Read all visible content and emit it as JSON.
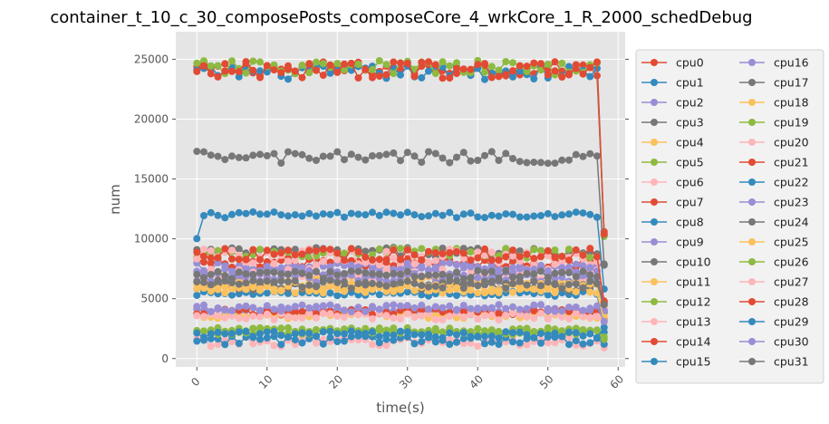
{
  "chart_data": {
    "type": "line",
    "title": "container_t_10_c_30_composePosts_composeCore_4_wrkCore_1_R_2000_schedDebug",
    "xlabel": "time(s)",
    "ylabel": "num",
    "xlim": [
      -3,
      61
    ],
    "ylim": [
      -700,
      27300
    ],
    "xticks": [
      0,
      10,
      20,
      30,
      40,
      50,
      60
    ],
    "yticks": [
      0,
      5000,
      10000,
      15000,
      20000,
      25000
    ],
    "grid": true,
    "legend": {
      "placement": "right-outside",
      "columns": 2
    },
    "palette": [
      "#E24A33",
      "#348ABD",
      "#988ED5",
      "#777777",
      "#FBC15E",
      "#8EBA42",
      "#FFB5B8"
    ],
    "x": [
      0,
      1,
      2,
      3,
      4,
      5,
      6,
      7,
      8,
      9,
      10,
      11,
      12,
      13,
      14,
      15,
      16,
      17,
      18,
      19,
      20,
      21,
      22,
      23,
      24,
      25,
      26,
      27,
      28,
      29,
      30,
      31,
      32,
      33,
      34,
      35,
      36,
      37,
      38,
      39,
      40,
      41,
      42,
      43,
      44,
      45,
      46,
      47,
      48,
      49,
      50,
      51,
      52,
      53,
      54,
      55,
      56,
      57,
      58
    ],
    "series": [
      {
        "name": "cpu0",
        "base": 24200,
        "amp": 600,
        "end": 10600
      },
      {
        "name": "cpu1",
        "base": 23900,
        "amp": 600,
        "end": 10300
      },
      {
        "name": "cpu2",
        "base": 4000,
        "amp": 300,
        "end": 3800
      },
      {
        "name": "cpu3",
        "base": 8900,
        "amp": 400,
        "end": 7800
      },
      {
        "name": "cpu4",
        "base": 3600,
        "amp": 250,
        "end": 3400
      },
      {
        "name": "cpu5",
        "base": 24300,
        "amp": 600,
        "end": 10200
      },
      {
        "name": "cpu6",
        "base": 1400,
        "amp": 400,
        "end": 900
      },
      {
        "name": "cpu7",
        "base": 8000,
        "amp": 400,
        "end": 4800
      },
      {
        "name": "cpu8",
        "base": 12000,
        "amp": 250,
        "end": 5800
      },
      {
        "name": "cpu9",
        "base": 7600,
        "amp": 400,
        "end": 4100
      },
      {
        "name": "cpu10",
        "base": 16800,
        "amp": 500,
        "end": 7900
      },
      {
        "name": "cpu11",
        "base": 6600,
        "amp": 400,
        "end": 3700
      },
      {
        "name": "cpu12",
        "base": 8800,
        "amp": 400,
        "end": 4400
      },
      {
        "name": "cpu13",
        "base": 7000,
        "amp": 500,
        "end": 4200
      },
      {
        "name": "cpu14",
        "base": 3900,
        "amp": 250,
        "end": 3300
      },
      {
        "name": "cpu15",
        "base": 5400,
        "amp": 200,
        "end": 2200
      },
      {
        "name": "cpu16",
        "base": 6700,
        "amp": 400,
        "end": 4000
      },
      {
        "name": "cpu17",
        "base": 6000,
        "amp": 350,
        "end": 3900
      },
      {
        "name": "cpu18",
        "base": 6000,
        "amp": 400,
        "end": 3500
      },
      {
        "name": "cpu19",
        "base": 2400,
        "amp": 200,
        "end": 1800
      },
      {
        "name": "cpu20",
        "base": 8500,
        "amp": 700,
        "end": 4300
      },
      {
        "name": "cpu21",
        "base": 24100,
        "amp": 700,
        "end": 10400
      },
      {
        "name": "cpu22",
        "base": 1500,
        "amp": 400,
        "end": 1200
      },
      {
        "name": "cpu23",
        "base": 7300,
        "amp": 400,
        "end": 4000
      },
      {
        "name": "cpu24",
        "base": 7000,
        "amp": 350,
        "end": 4600
      },
      {
        "name": "cpu25",
        "base": 5800,
        "amp": 350,
        "end": 3200
      },
      {
        "name": "cpu26",
        "base": 2200,
        "amp": 200,
        "end": 1600
      },
      {
        "name": "cpu27",
        "base": 3500,
        "amp": 300,
        "end": 3000
      },
      {
        "name": "cpu28",
        "base": 8700,
        "amp": 500,
        "end": 4700
      },
      {
        "name": "cpu29",
        "base": 2000,
        "amp": 300,
        "end": 2600
      },
      {
        "name": "cpu30",
        "base": 4200,
        "amp": 300,
        "end": 3100
      },
      {
        "name": "cpu31",
        "base": 6200,
        "amp": 350,
        "end": 4500
      }
    ]
  }
}
